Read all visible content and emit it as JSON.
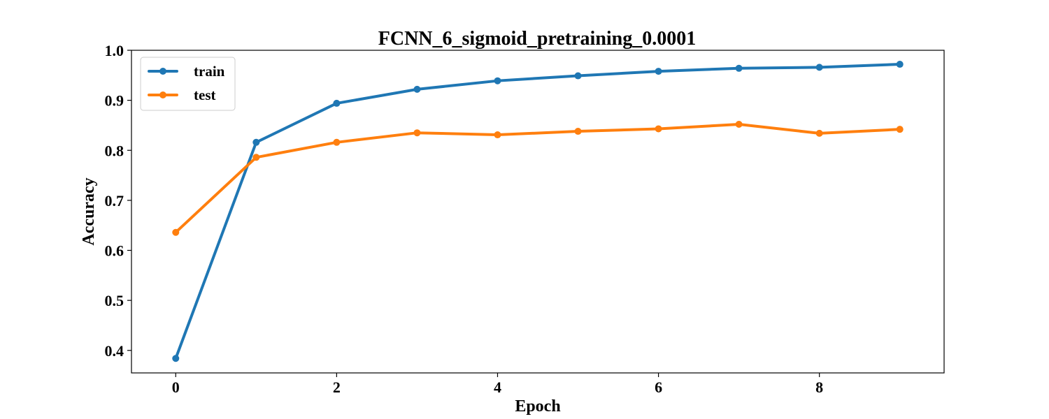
{
  "colors": {
    "train": "#1f77b4",
    "test": "#ff7f0e"
  },
  "chart_data": {
    "type": "line",
    "title": "FCNN_6_sigmoid_pretraining_0.0001",
    "xlabel": "Epoch",
    "ylabel": "Accuracy",
    "x": [
      0,
      1,
      2,
      3,
      4,
      5,
      6,
      7,
      8,
      9
    ],
    "xlim": [
      -0.55,
      9.55
    ],
    "ylim": [
      0.355,
      1.0
    ],
    "xticks": [
      0,
      2,
      4,
      6,
      8
    ],
    "yticks": [
      0.4,
      0.5,
      0.6,
      0.7,
      0.8,
      0.9,
      1.0
    ],
    "ytick_labels": [
      "0.4",
      "0.5",
      "0.6",
      "0.7",
      "0.8",
      "0.9",
      "1.0"
    ],
    "grid": false,
    "legend_position": "top-left",
    "series": [
      {
        "name": "train",
        "color": "#1f77b4",
        "values": [
          0.384,
          0.816,
          0.894,
          0.922,
          0.939,
          0.949,
          0.958,
          0.964,
          0.966,
          0.972
        ]
      },
      {
        "name": "test",
        "color": "#ff7f0e",
        "values": [
          0.636,
          0.786,
          0.816,
          0.835,
          0.831,
          0.838,
          0.843,
          0.852,
          0.834,
          0.842
        ]
      }
    ]
  }
}
